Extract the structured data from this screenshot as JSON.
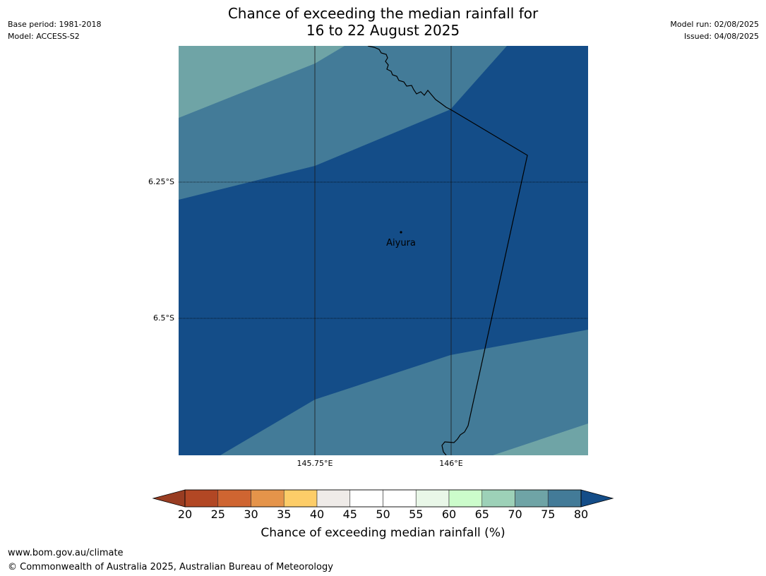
{
  "header": {
    "title_line1": "Chance of exceeding the median rainfall for",
    "title_line2": "16 to 22 August 2025",
    "base_period": "Base period: 1981-2018",
    "model": "Model: ACCESS-S2",
    "model_run": "Model run: 02/08/2025",
    "issued": "Issued: 04/08/2025"
  },
  "map": {
    "latitude_labels": [
      "6.25°S",
      "6.5°S"
    ],
    "longitude_labels": [
      "145.75°E",
      "146°E"
    ],
    "place": {
      "name": "Aiyura",
      "lat": -6.34,
      "lon": 145.9
    },
    "extent": {
      "lon_min": 145.5,
      "lon_max": 146.25,
      "lat_min": -6.75,
      "lat_max": -6.0
    },
    "zone_colors": {
      "75_80": "#6fa4a6",
      "80_plus": "#437b98",
      "above_80": "#144d88"
    }
  },
  "colorbar": {
    "ticks": [
      "20",
      "25",
      "30",
      "35",
      "40",
      "45",
      "50",
      "55",
      "60",
      "65",
      "70",
      "75",
      "80"
    ],
    "segment_colors": [
      "#b24724",
      "#cf6531",
      "#e5944a",
      "#fdcd68",
      "#efebe8",
      "#ffffff",
      "#ffffff",
      "#e9f7e8",
      "#ccfccb",
      "#9dd1b8",
      "#6fa4a6",
      "#437b98"
    ],
    "low_extend_color": "#993d22",
    "high_extend_color": "#144d88",
    "label": "Chance of exceeding median rainfall (%)"
  },
  "footer": {
    "url": "www.bom.gov.au/climate",
    "copyright": "© Commonwealth of Australia 2025, Australian Bureau of Meteorology"
  }
}
